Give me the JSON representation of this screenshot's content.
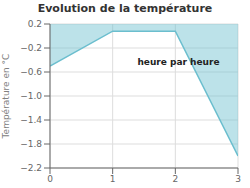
{
  "chart_data": {
    "type": "area",
    "title": "Evolution de la température",
    "ylabel": "Température en °C",
    "x": [
      0,
      1,
      2,
      3
    ],
    "values": [
      -0.5,
      0.08,
      0.08,
      -2.0
    ],
    "color": "#6bbece",
    "xlim": [
      0,
      3
    ],
    "ylim": [
      -2.2,
      0.2
    ],
    "xticks": [
      0,
      1,
      2,
      3
    ],
    "yticks": [
      {
        "value": 0.2,
        "label": "0.2"
      },
      {
        "value": -0.2,
        "label": "−0.2"
      },
      {
        "value": -0.6,
        "label": "−0.6"
      },
      {
        "value": -1.0,
        "label": "−1.0"
      },
      {
        "value": -1.4,
        "label": "−1.4"
      },
      {
        "value": -1.8,
        "label": "−1.8"
      },
      {
        "value": -2.2,
        "label": "−2.2"
      }
    ],
    "grid": true,
    "annotations": [
      {
        "text": "heure par heure",
        "x": 2.05,
        "y": -0.35
      }
    ]
  }
}
